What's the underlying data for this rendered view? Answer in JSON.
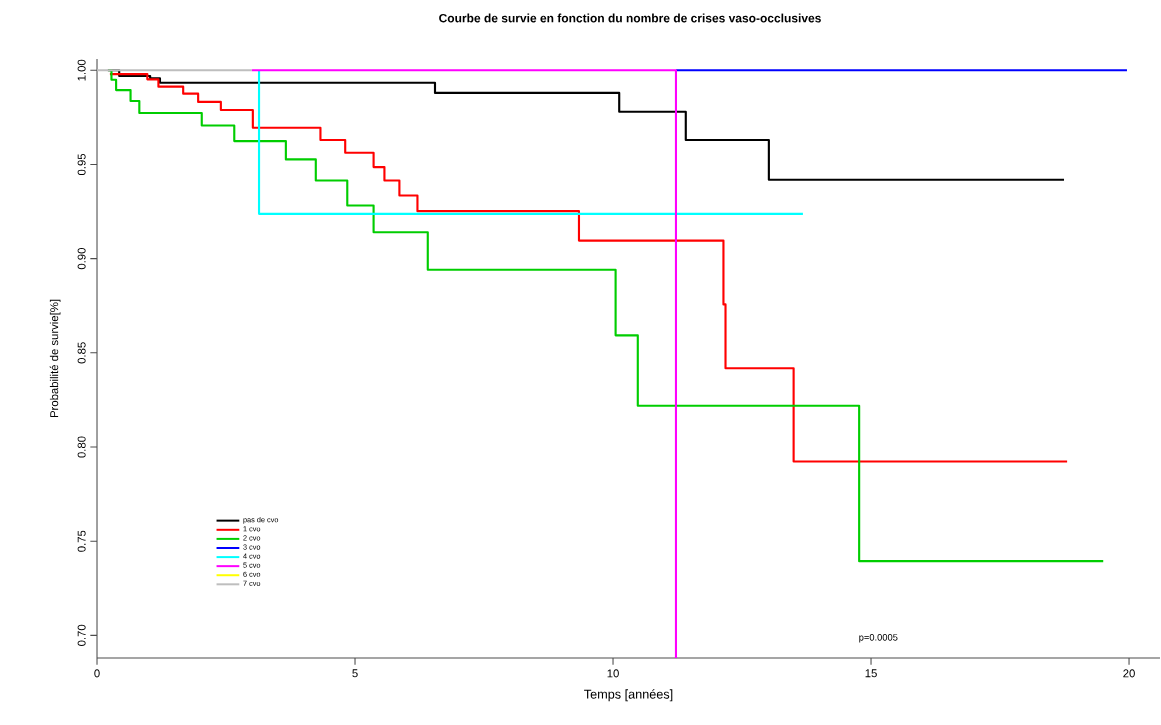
{
  "chart_data": {
    "type": "step",
    "title": "Courbe de survie en fonction du nombre de crises vaso-occlusives",
    "xlabel": "Temps [années]",
    "ylabel": "Probabilité de survie[%]",
    "xlim": [
      0,
      20.6
    ],
    "ylim": [
      0.688,
      1.006
    ],
    "xticks": [
      0,
      5,
      10,
      15,
      20
    ],
    "yticks": [
      {
        "value": 0.7,
        "label": "0.70"
      },
      {
        "value": 0.75,
        "label": "0.75"
      },
      {
        "value": 0.8,
        "label": "0.80"
      },
      {
        "value": 0.85,
        "label": "0.85"
      },
      {
        "value": 0.9,
        "label": "0.90"
      },
      {
        "value": 0.95,
        "label": "0.95"
      },
      {
        "value": 1.0,
        "label": "1.00"
      }
    ],
    "legend": "bottom left",
    "grid": false,
    "annotations": [
      "p=0.0005"
    ],
    "series": [
      {
        "name": "pas de cvo",
        "color": "#000000",
        "x": [
          0.21,
          0.43,
          1.03,
          1.22,
          6.55,
          10.12,
          11.41,
          13.02,
          18.74
        ],
        "values": [
          1.0,
          0.997,
          0.9957,
          0.9934,
          0.988,
          0.978,
          0.963,
          0.9419,
          0.9419
        ]
      },
      {
        "name": "1 cvo",
        "color": "#ff0000",
        "x": [
          0.25,
          0.975,
          1.19,
          1.67,
          1.96,
          2.4,
          3.02,
          4.33,
          4.81,
          5.36,
          5.57,
          5.86,
          6.21,
          9.34,
          12.14,
          12.18,
          13.5,
          18.8
        ],
        "values": [
          0.998,
          0.9952,
          0.9913,
          0.9876,
          0.9832,
          0.9789,
          0.9695,
          0.963,
          0.9562,
          0.9486,
          0.9415,
          0.9335,
          0.9252,
          0.9096,
          0.8757,
          0.8418,
          0.7923,
          0.7923
        ]
      },
      {
        "name": "2 cvo",
        "color": "#00cd00",
        "x": [
          0.22,
          0.28,
          0.37,
          0.65,
          0.82,
          2.03,
          2.66,
          3.66,
          4.24,
          4.85,
          5.36,
          6.41,
          10.05,
          10.48,
          14.77,
          19.5
        ],
        "values": [
          1.0,
          0.995,
          0.9895,
          0.9837,
          0.9773,
          0.9707,
          0.9624,
          0.9527,
          0.9415,
          0.9282,
          0.914,
          0.8941,
          0.8593,
          0.8219,
          0.7394,
          0.7394
        ]
      },
      {
        "name": "3 cvo",
        "color": "#0000ff",
        "x": [
          11.22,
          19.96
        ],
        "values": [
          1.0,
          1.0
        ]
      },
      {
        "name": "4 cvo",
        "color": "#00ffff",
        "x": [
          3.14,
          3.14,
          13.68
        ],
        "values": [
          1.0,
          0.9238,
          0.9238
        ]
      },
      {
        "name": "5 cvo",
        "color": "#ff00ff",
        "x": [
          3.0,
          11.22,
          11.22
        ],
        "values": [
          1.0,
          1.0,
          0.688
        ]
      },
      {
        "name": "6 cvo",
        "color": "#ffff00"
      },
      {
        "name": "7 cvo",
        "color": "#bebebe",
        "x": [
          0,
          3.0
        ],
        "values": [
          1.0,
          1.0
        ]
      }
    ]
  }
}
